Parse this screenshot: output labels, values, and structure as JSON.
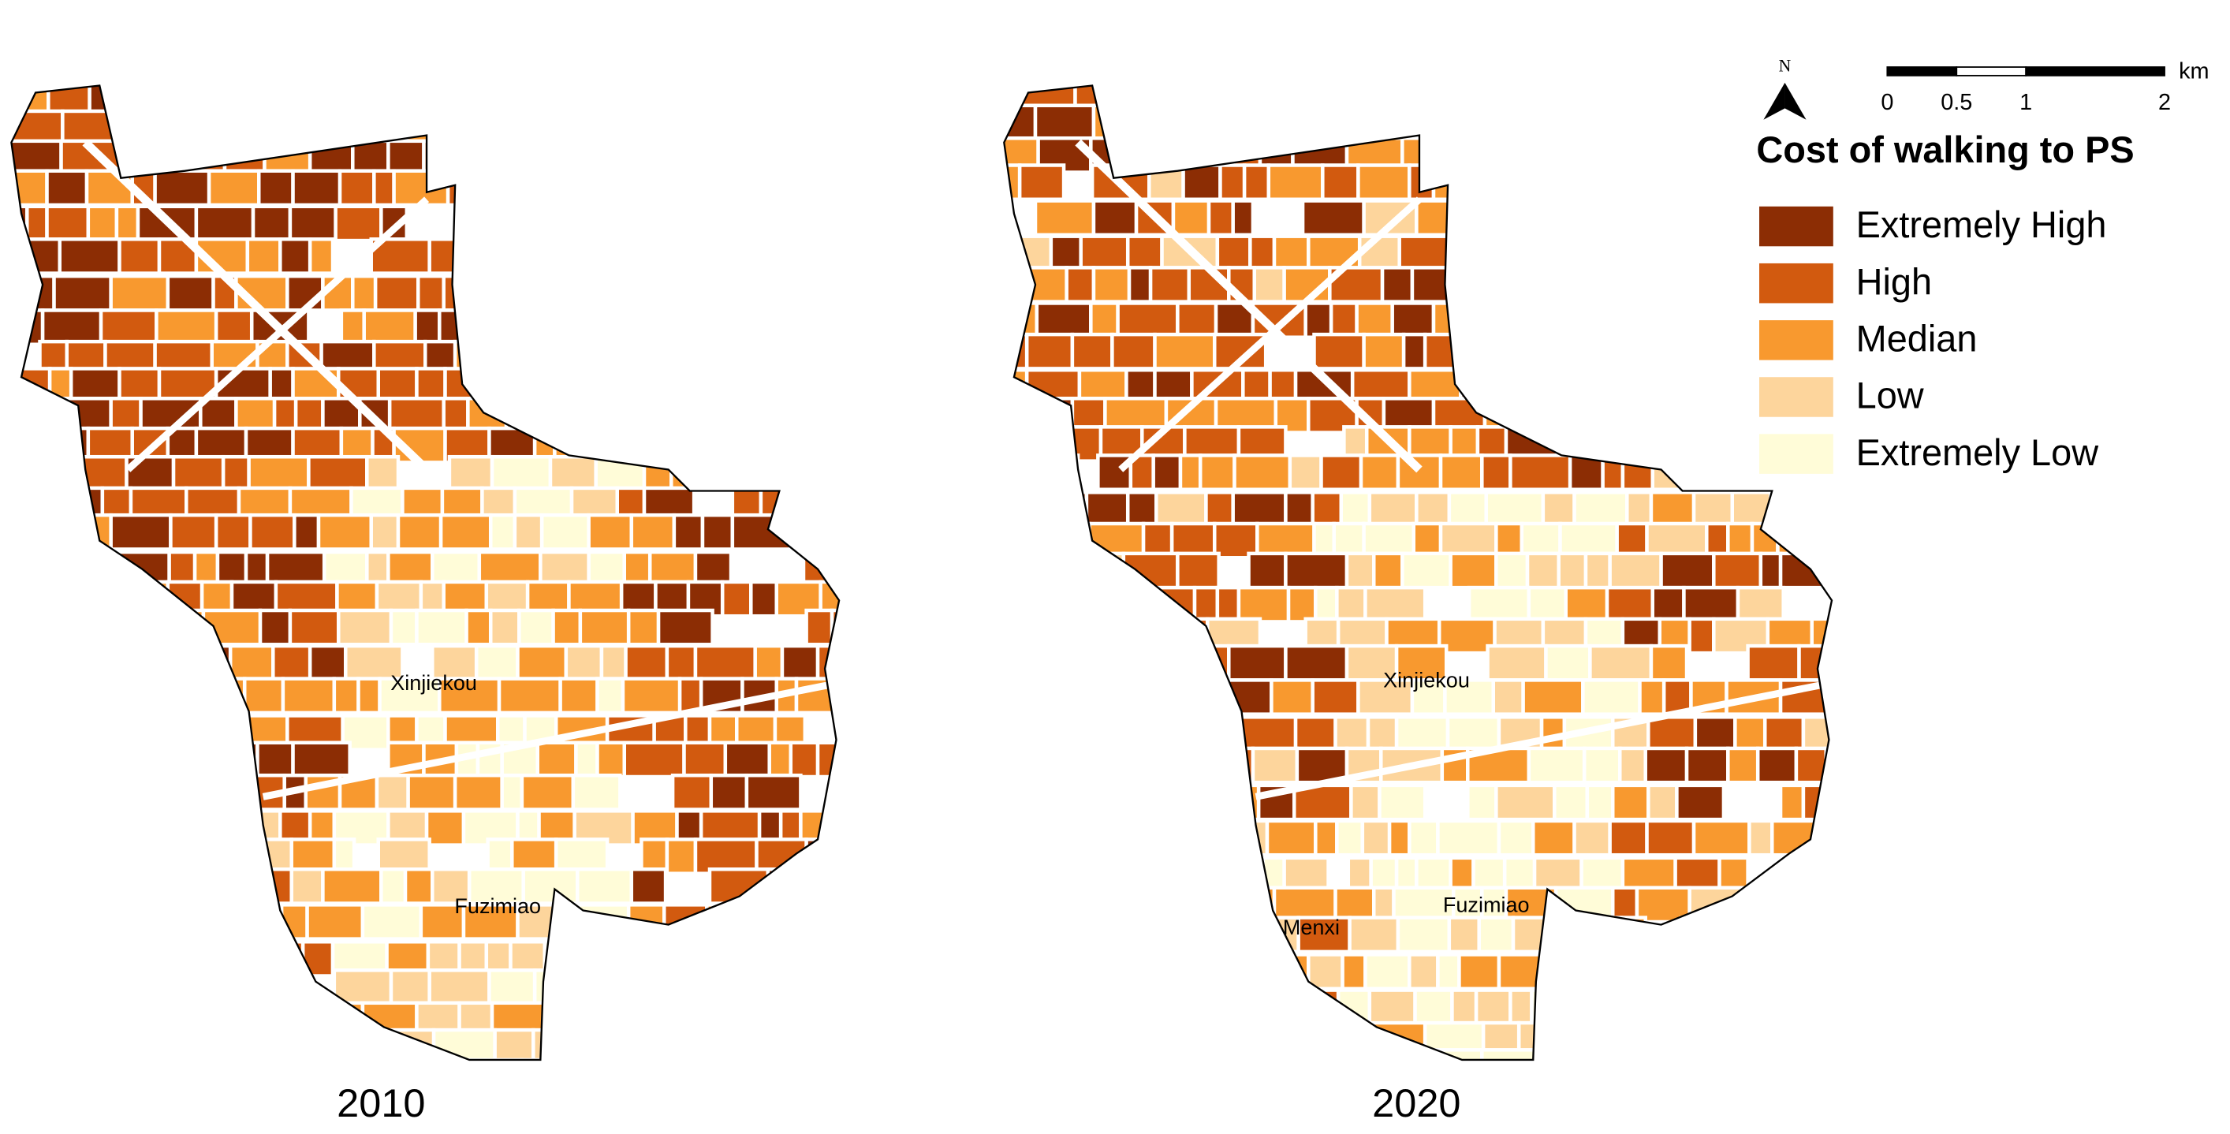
{
  "maps": [
    {
      "year": "2010",
      "places": [
        "Xinjiekou",
        "Fuzimiao"
      ]
    },
    {
      "year": "2020",
      "places": [
        "Xinjiekou",
        "Menxi",
        "Fuzimiao"
      ]
    }
  ],
  "north": "N",
  "scale_bar": {
    "ticks": [
      0,
      0.5,
      1,
      2
    ],
    "unit": "km"
  },
  "legend": {
    "title": "Cost of walking to PS",
    "items": [
      {
        "label": "Extremely High",
        "color": "#8c2d04"
      },
      {
        "label": "High",
        "color": "#d25a0f"
      },
      {
        "label": "Median",
        "color": "#f8992f"
      },
      {
        "label": "Low",
        "color": "#fdd59c"
      },
      {
        "label": "Extremely Low",
        "color": "#fffcd8"
      }
    ]
  }
}
